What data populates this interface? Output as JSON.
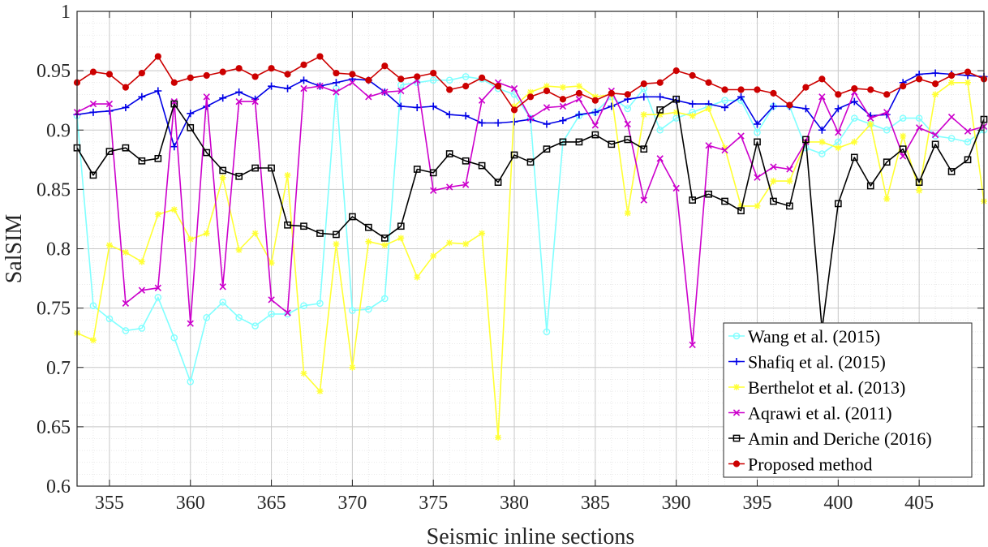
{
  "chart_data": {
    "type": "line",
    "title": "",
    "xlabel": "Seismic inline sections",
    "ylabel": "SalSIM",
    "xlim": [
      353,
      409
    ],
    "ylim": [
      0.6,
      1.0
    ],
    "xticks": [
      355,
      360,
      365,
      370,
      375,
      380,
      385,
      390,
      395,
      400,
      405
    ],
    "yticks": [
      0.6,
      0.65,
      0.7,
      0.75,
      0.8,
      0.85,
      0.9,
      0.95,
      1
    ],
    "ytick_labels": [
      "0.6",
      "0.65",
      "0.7",
      "0.75",
      "0.8",
      "0.85",
      "0.9",
      "0.95",
      "1"
    ],
    "grid": true,
    "minor_grid": true,
    "legend_position": "bottom-right",
    "x": [
      353,
      354,
      355,
      356,
      357,
      358,
      359,
      360,
      361,
      362,
      363,
      364,
      365,
      366,
      367,
      368,
      369,
      370,
      371,
      372,
      373,
      374,
      375,
      376,
      377,
      378,
      379,
      380,
      381,
      382,
      383,
      384,
      385,
      386,
      387,
      388,
      389,
      390,
      391,
      392,
      393,
      394,
      395,
      396,
      397,
      398,
      399,
      400,
      401,
      402,
      403,
      404,
      405,
      406,
      407,
      408,
      409
    ],
    "series": [
      {
        "name": "Wang et al. (2015)",
        "color": "#80ffff",
        "marker": "circle",
        "values": [
          0.912,
          0.752,
          0.741,
          0.731,
          0.733,
          0.759,
          0.725,
          0.688,
          0.742,
          0.755,
          0.742,
          0.735,
          0.745,
          0.745,
          0.752,
          0.754,
          0.935,
          0.748,
          0.749,
          0.758,
          0.938,
          0.94,
          0.942,
          0.942,
          0.945,
          0.943,
          0.935,
          0.93,
          0.91,
          0.73,
          0.89,
          0.912,
          0.915,
          0.928,
          0.918,
          0.935,
          0.9,
          0.91,
          0.915,
          0.92,
          0.925,
          0.925,
          0.898,
          0.92,
          0.92,
          0.885,
          0.88,
          0.89,
          0.91,
          0.905,
          0.9,
          0.91,
          0.91,
          0.895,
          0.893,
          0.89,
          0.9
        ]
      },
      {
        "name": "Shafiq et al. (2015)",
        "color": "#0000e6",
        "marker": "plus",
        "values": [
          0.913,
          0.915,
          0.916,
          0.919,
          0.928,
          0.933,
          0.886,
          0.914,
          0.92,
          0.927,
          0.932,
          0.926,
          0.937,
          0.935,
          0.942,
          0.937,
          0.94,
          0.943,
          0.942,
          0.932,
          0.92,
          0.919,
          0.92,
          0.913,
          0.912,
          0.906,
          0.906,
          0.907,
          0.909,
          0.905,
          0.908,
          0.913,
          0.915,
          0.92,
          0.926,
          0.928,
          0.928,
          0.925,
          0.922,
          0.922,
          0.919,
          0.928,
          0.905,
          0.92,
          0.92,
          0.918,
          0.9,
          0.918,
          0.924,
          0.912,
          0.913,
          0.94,
          0.947,
          0.948,
          0.947,
          0.946,
          0.945
        ]
      },
      {
        "name": "Berthelot et al. (2013)",
        "color": "#ffff33",
        "marker": "star",
        "values": [
          0.729,
          0.723,
          0.803,
          0.797,
          0.789,
          0.829,
          0.833,
          0.808,
          0.813,
          0.86,
          0.799,
          0.813,
          0.788,
          0.862,
          0.695,
          0.68,
          0.804,
          0.7,
          0.806,
          0.803,
          0.809,
          0.776,
          0.794,
          0.805,
          0.804,
          0.813,
          0.641,
          0.92,
          0.932,
          0.937,
          0.936,
          0.937,
          0.928,
          0.93,
          0.83,
          0.913,
          0.913,
          0.915,
          0.912,
          0.918,
          0.885,
          0.836,
          0.836,
          0.857,
          0.857,
          0.89,
          0.89,
          0.885,
          0.89,
          0.905,
          0.842,
          0.895,
          0.849,
          0.93,
          0.94,
          0.94,
          0.84
        ]
      },
      {
        "name": "Aqrawi et al. (2011)",
        "color": "#cc00cc",
        "marker": "x",
        "values": [
          0.915,
          0.922,
          0.922,
          0.754,
          0.765,
          0.767,
          0.924,
          0.737,
          0.928,
          0.768,
          0.924,
          0.924,
          0.757,
          0.746,
          0.935,
          0.937,
          0.932,
          0.94,
          0.928,
          0.932,
          0.933,
          0.942,
          0.849,
          0.852,
          0.854,
          0.925,
          0.94,
          0.935,
          0.91,
          0.919,
          0.92,
          0.926,
          0.904,
          0.933,
          0.905,
          0.841,
          0.876,
          0.851,
          0.719,
          0.887,
          0.883,
          0.895,
          0.86,
          0.869,
          0.867,
          0.89,
          0.928,
          0.898,
          0.932,
          0.91,
          0.915,
          0.878,
          0.902,
          0.896,
          0.911,
          0.899,
          0.903
        ]
      },
      {
        "name": "Amin and Deriche (2016)",
        "color": "#000000",
        "marker": "square",
        "values": [
          0.885,
          0.862,
          0.882,
          0.885,
          0.874,
          0.876,
          0.922,
          0.902,
          0.881,
          0.866,
          0.861,
          0.868,
          0.868,
          0.82,
          0.819,
          0.813,
          0.812,
          0.827,
          0.818,
          0.809,
          0.819,
          0.867,
          0.864,
          0.88,
          0.874,
          0.87,
          0.856,
          0.879,
          0.873,
          0.884,
          0.89,
          0.89,
          0.896,
          0.888,
          0.892,
          0.884,
          0.917,
          0.926,
          0.841,
          0.846,
          0.84,
          0.832,
          0.89,
          0.84,
          0.836,
          0.892,
          0.732,
          0.838,
          0.877,
          0.853,
          0.873,
          0.884,
          0.856,
          0.888,
          0.865,
          0.875,
          0.909
        ]
      },
      {
        "name": "Proposed method",
        "color": "#cc0000",
        "marker": "circle-filled",
        "values": [
          0.94,
          0.949,
          0.947,
          0.936,
          0.948,
          0.962,
          0.94,
          0.944,
          0.946,
          0.949,
          0.952,
          0.945,
          0.952,
          0.947,
          0.955,
          0.962,
          0.948,
          0.947,
          0.942,
          0.954,
          0.943,
          0.945,
          0.948,
          0.934,
          0.937,
          0.944,
          0.937,
          0.917,
          0.928,
          0.933,
          0.926,
          0.931,
          0.925,
          0.931,
          0.93,
          0.939,
          0.94,
          0.95,
          0.946,
          0.94,
          0.934,
          0.934,
          0.934,
          0.931,
          0.921,
          0.936,
          0.943,
          0.93,
          0.935,
          0.934,
          0.93,
          0.937,
          0.943,
          0.939,
          0.946,
          0.949,
          0.943
        ]
      }
    ]
  }
}
